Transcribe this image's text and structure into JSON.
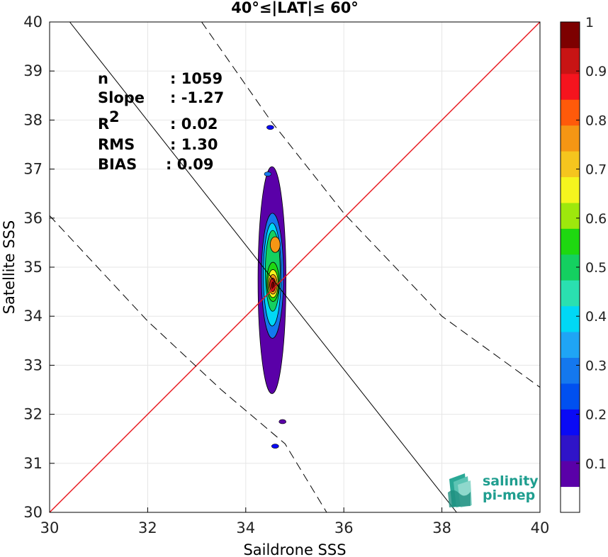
{
  "chart_data": {
    "type": "heatmap",
    "title": "40°≤|LAT|≤ 60°",
    "xlabel": "Saildrone SSS",
    "ylabel": "Satellite SSS",
    "xlim": [
      30,
      40
    ],
    "ylim": [
      30,
      40
    ],
    "xticks": [
      "30",
      "32",
      "34",
      "36",
      "38",
      "40"
    ],
    "yticks": [
      "30",
      "31",
      "32",
      "33",
      "34",
      "35",
      "36",
      "37",
      "38",
      "39",
      "40"
    ],
    "grid": true,
    "stats": [
      {
        "label": "n",
        "value": ": 1059"
      },
      {
        "label": "Slope",
        "value": ": -1.27"
      },
      {
        "label": "R",
        "sup": "2",
        "value": ": 0.02"
      },
      {
        "label": "RMS",
        "value": ": 1.30"
      },
      {
        "label": "BIAS",
        "value": ": 0.09"
      }
    ],
    "lines": [
      {
        "kind": "identity",
        "color": "#e8141b",
        "points": [
          [
            30,
            30
          ],
          [
            40,
            40
          ]
        ]
      },
      {
        "kind": "regression",
        "color": "#000000",
        "points": [
          [
            30.41,
            40
          ],
          [
            38.3,
            30
          ]
        ]
      },
      {
        "kind": "upper-bound",
        "color": "#000000",
        "dash": true,
        "points": [
          [
            33.1,
            40
          ],
          [
            34.5,
            38.0
          ],
          [
            36.0,
            36.1
          ],
          [
            38.0,
            34.0
          ],
          [
            40,
            32.55
          ]
        ]
      },
      {
        "kind": "lower-bound",
        "color": "#000000",
        "dash": true,
        "points": [
          [
            30,
            36.05
          ],
          [
            32.0,
            33.9
          ],
          [
            33.5,
            32.5
          ],
          [
            34.8,
            31.4
          ],
          [
            35.65,
            30
          ]
        ]
      }
    ],
    "colorbar": {
      "ticks": [
        "0.1",
        "0.2",
        "0.3",
        "0.4",
        "0.5",
        "0.6",
        "0.7",
        "0.8",
        "0.9",
        "1"
      ],
      "colors": [
        "#ffffff",
        "#5a00a8",
        "#2f14c8",
        "#0a0af5",
        "#0050f0",
        "#1478ee",
        "#1fa5f5",
        "#00d8f5",
        "#2ae0b0",
        "#14d060",
        "#1ed810",
        "#9ee80c",
        "#f5f51e",
        "#f5c51e",
        "#f59614",
        "#ff5a0a",
        "#f5141e",
        "#c81414",
        "#7d0000"
      ]
    },
    "contours": [
      {
        "level": 0.05,
        "x": [
          34.25,
          34.82
        ],
        "y": [
          32.42,
          37.05
        ]
      },
      {
        "level": 0.25,
        "x": [
          34.32,
          34.77
        ],
        "y": [
          33.55,
          36.1
        ]
      },
      {
        "level": 0.35,
        "x": [
          34.36,
          34.72
        ],
        "y": [
          33.8,
          35.9
        ]
      },
      {
        "level": 0.45,
        "x": [
          34.4,
          34.7
        ],
        "y": [
          34.1,
          35.75
        ]
      },
      {
        "level": 0.55,
        "x": [
          34.43,
          34.68
        ],
        "y": [
          34.3,
          35.1
        ]
      },
      {
        "level": 0.65,
        "x": [
          34.45,
          34.66
        ],
        "y": [
          34.38,
          34.95
        ]
      },
      {
        "level": 0.75,
        "x": [
          34.47,
          34.64
        ],
        "y": [
          34.45,
          34.85
        ]
      },
      {
        "level": 0.9,
        "x": [
          34.49,
          34.61
        ],
        "y": [
          34.5,
          34.78
        ]
      },
      {
        "level": 1.0,
        "x": [
          34.53,
          34.58
        ],
        "y": [
          34.55,
          34.7
        ]
      }
    ],
    "secondary_peak": {
      "x": [
        34.5,
        34.7
      ],
      "y": [
        35.3,
        35.62
      ],
      "level": 0.75
    },
    "isolated_points": [
      {
        "x": 34.5,
        "y": 37.85,
        "level": 0.15
      },
      {
        "x": 34.6,
        "y": 31.35,
        "level": 0.15
      },
      {
        "x": 34.75,
        "y": 31.85,
        "level": 0.05
      },
      {
        "x": 34.45,
        "y": 36.9,
        "level": 0.25
      }
    ]
  },
  "logo": {
    "line1": "salinity",
    "line2": "pi-mep"
  }
}
